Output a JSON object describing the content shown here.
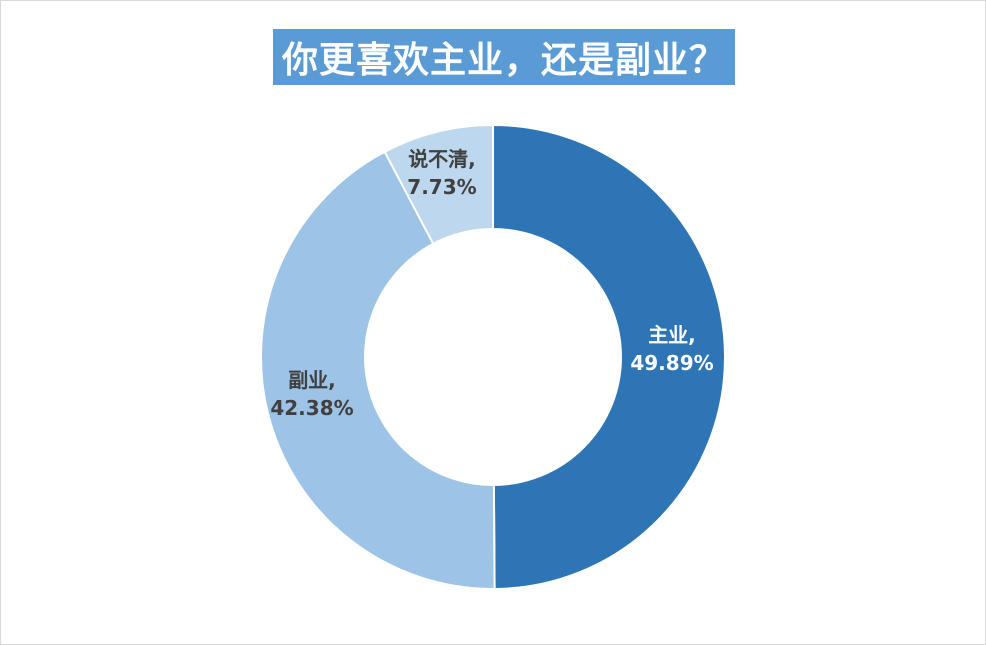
{
  "chart_data": {
    "type": "pie",
    "variant": "donut",
    "title": "你更喜欢主业，还是副业？",
    "slices": [
      {
        "name": "主业",
        "value": 49.89,
        "label": "主业,",
        "value_label": "49.89%",
        "color": "#2e75b6",
        "label_color": "#ffffff"
      },
      {
        "name": "副业",
        "value": 42.38,
        "label": "副业,",
        "value_label": "42.38%",
        "color": "#9dc3e6",
        "label_color": "#404040"
      },
      {
        "name": "说不清",
        "value": 7.73,
        "label": "说不清,",
        "value_label": "7.73%",
        "color": "#bdd7ee",
        "label_color": "#404040"
      }
    ],
    "legend": "none"
  },
  "colors": {
    "title_background": "#5b9bd5",
    "title_text": "#ffffff",
    "border": "#d9d9d9"
  }
}
